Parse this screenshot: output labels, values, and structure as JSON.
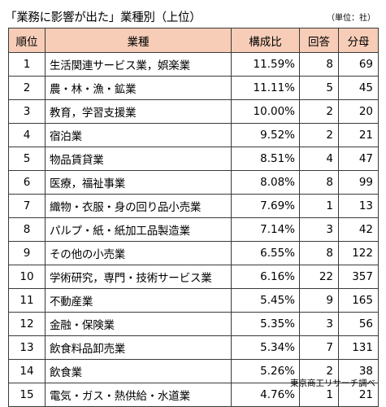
{
  "title": "「業務に影響が出た」業種別（上位）",
  "unit_note": "（単位：社）",
  "headers": {
    "rank": "順位",
    "industry": "業種",
    "ratio": "構成比",
    "answers": "回答",
    "denominator": "分母"
  },
  "rows": [
    {
      "rank": "1",
      "industry": "生活関連サービス業，娯楽業",
      "ratio": "11.59%",
      "answers": "8",
      "denominator": "69"
    },
    {
      "rank": "2",
      "industry": "農・林・漁・鉱業",
      "ratio": "11.11%",
      "answers": "5",
      "denominator": "45"
    },
    {
      "rank": "3",
      "industry": "教育，学習支援業",
      "ratio": "10.00%",
      "answers": "2",
      "denominator": "20"
    },
    {
      "rank": "4",
      "industry": "宿泊業",
      "ratio": "9.52%",
      "answers": "2",
      "denominator": "21"
    },
    {
      "rank": "5",
      "industry": "物品賃貸業",
      "ratio": "8.51%",
      "answers": "4",
      "denominator": "47"
    },
    {
      "rank": "6",
      "industry": "医療，福祉事業",
      "ratio": "8.08%",
      "answers": "8",
      "denominator": "99"
    },
    {
      "rank": "7",
      "industry": "織物・衣服・身の回り品小売業",
      "ratio": "7.69%",
      "answers": "1",
      "denominator": "13"
    },
    {
      "rank": "8",
      "industry": "パルプ・紙・紙加工品製造業",
      "ratio": "7.14%",
      "answers": "3",
      "denominator": "42"
    },
    {
      "rank": "9",
      "industry": "その他の小売業",
      "ratio": "6.55%",
      "answers": "8",
      "denominator": "122"
    },
    {
      "rank": "10",
      "industry": "学術研究，専門・技術サービス業",
      "ratio": "6.16%",
      "answers": "22",
      "denominator": "357"
    },
    {
      "rank": "11",
      "industry": "不動産業",
      "ratio": "5.45%",
      "answers": "9",
      "denominator": "165"
    },
    {
      "rank": "12",
      "industry": "金融・保険業",
      "ratio": "5.35%",
      "answers": "3",
      "denominator": "56"
    },
    {
      "rank": "13",
      "industry": "飲食料品卸売業",
      "ratio": "5.34%",
      "answers": "7",
      "denominator": "131"
    },
    {
      "rank": "14",
      "industry": "飲食業",
      "ratio": "5.26%",
      "answers": "2",
      "denominator": "38"
    },
    {
      "rank": "15",
      "industry": "電気・ガス・熱供給・水道業",
      "ratio": "4.76%",
      "answers": "1",
      "denominator": "21"
    }
  ],
  "source": "東京商工リサーチ調べ",
  "colors": {
    "header_background": "#f7cdb8",
    "border": "#3a3a3a"
  }
}
